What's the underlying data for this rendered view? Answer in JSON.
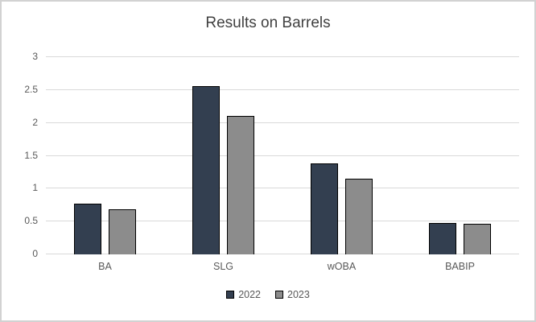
{
  "window": {
    "background": "#ffffff",
    "frame_border_color": "#d2d2d2"
  },
  "chart_data": {
    "type": "bar",
    "title": "Results on Barrels",
    "title_color": "#404040",
    "categories": [
      "BA",
      "SLG",
      "wOBA",
      "BABIP"
    ],
    "series": [
      {
        "name": "2022",
        "color": "#333F50",
        "values": [
          0.77,
          2.56,
          1.38,
          0.48
        ]
      },
      {
        "name": "2023",
        "color": "#8C8C8C",
        "values": [
          0.69,
          2.11,
          1.15,
          0.46
        ]
      }
    ],
    "xlabel": "",
    "ylabel": "",
    "ylim": [
      0,
      3
    ],
    "ytick_step": 0.5,
    "ytick_labels": [
      "0",
      "0.5",
      "1",
      "1.5",
      "2",
      "2.5",
      "3"
    ],
    "grid": true,
    "gridline_color": "#d9d9d9",
    "axis_text_color": "#595959",
    "bar_outline_color": "#000000",
    "legend_position": "bottom"
  }
}
